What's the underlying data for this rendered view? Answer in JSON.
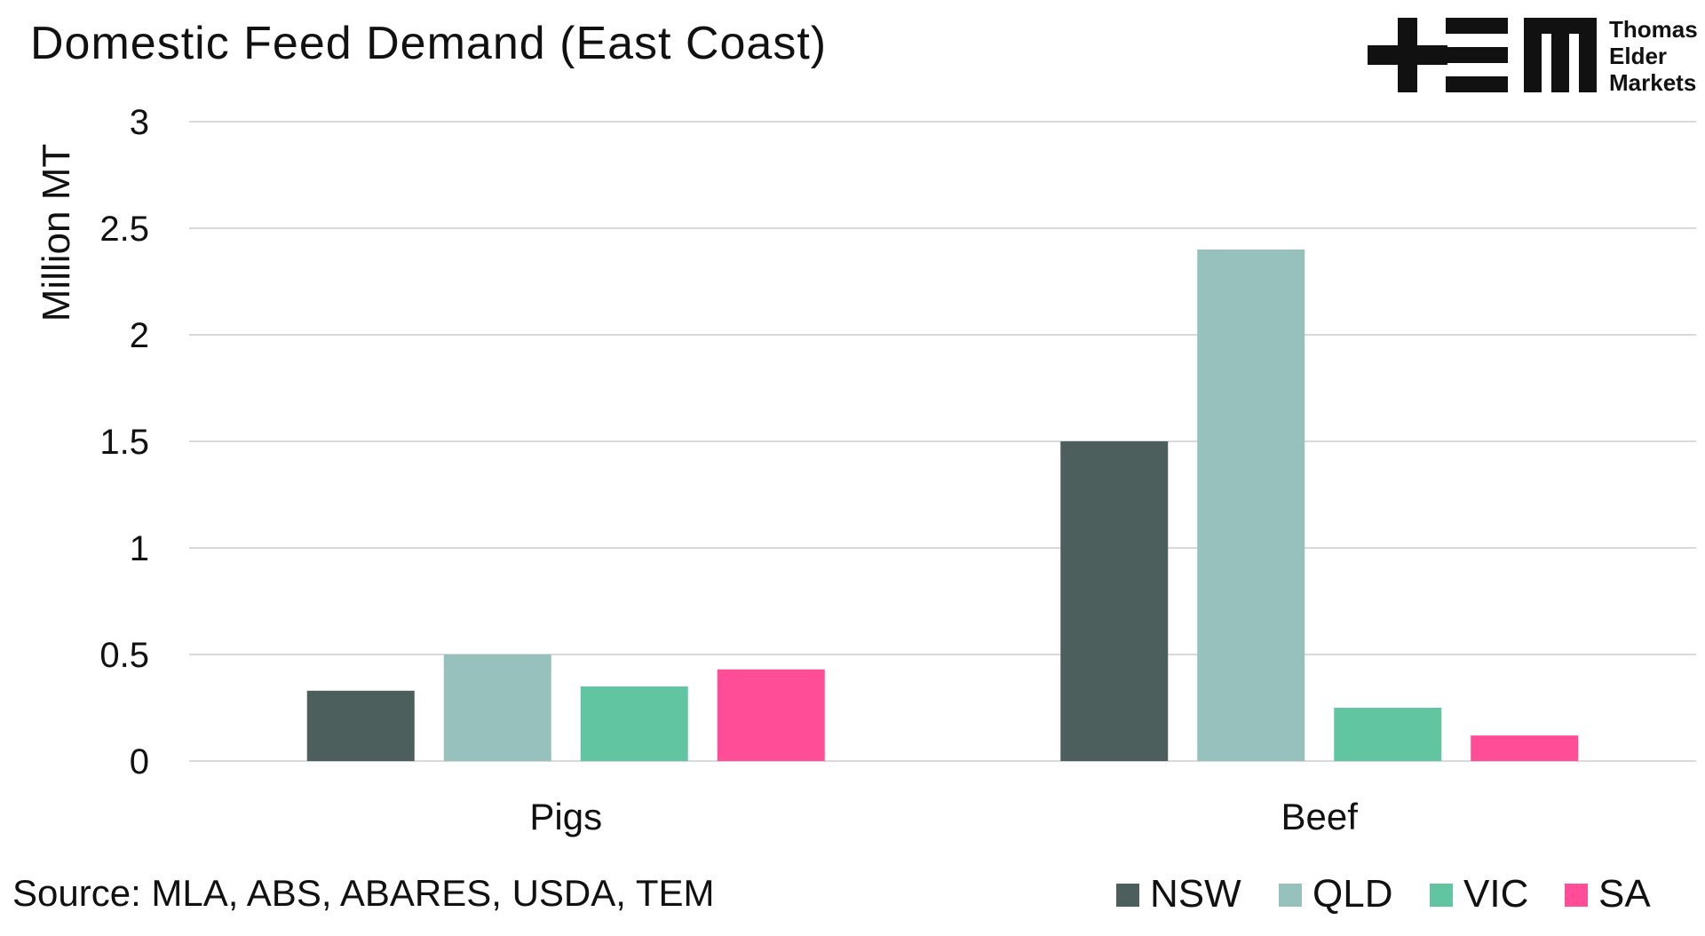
{
  "source": "Source: MLA, ABS, ABARES, USDA, TEM",
  "logo": {
    "lines": [
      "Thomas",
      "Elder",
      "Markets"
    ]
  },
  "chart_data": {
    "type": "bar",
    "title": "Domestic Feed Demand (East Coast)",
    "ylabel": "Million MT",
    "xlabel": "",
    "categories": [
      "Pigs",
      "Beef"
    ],
    "ylim": [
      0,
      3
    ],
    "yticks": [
      "0",
      "0.5",
      "1",
      "1.5",
      "2",
      "2.5",
      "3"
    ],
    "grid": true,
    "legend_position": "bottom-right",
    "series": [
      {
        "name": "NSW",
        "color": "#4d5f5d",
        "values": [
          0.33,
          1.5
        ]
      },
      {
        "name": "QLD",
        "color": "#97c1bc",
        "values": [
          0.5,
          2.4
        ]
      },
      {
        "name": "VIC",
        "color": "#62c5a2",
        "values": [
          0.35,
          0.25
        ]
      },
      {
        "name": "SA",
        "color": "#ff4d97",
        "values": [
          0.43,
          0.12
        ]
      }
    ]
  }
}
